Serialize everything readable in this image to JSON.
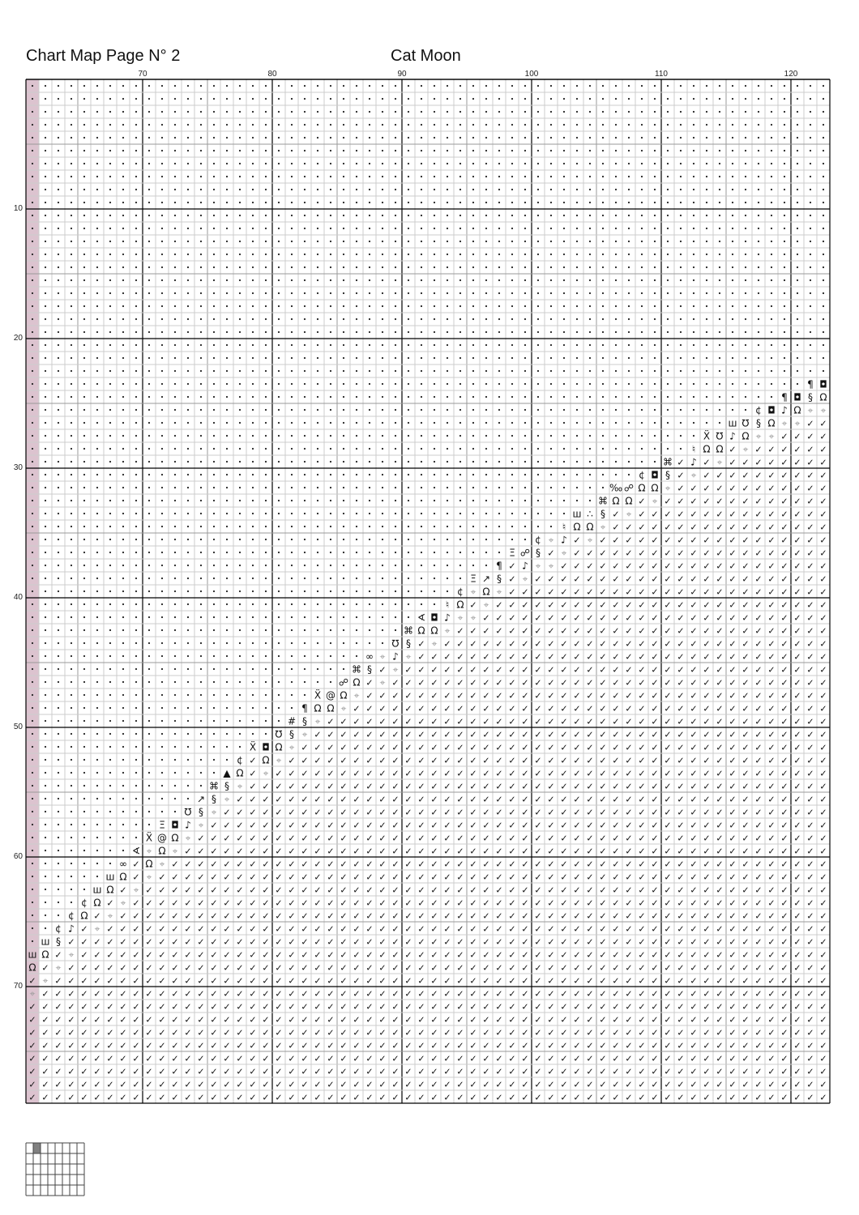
{
  "header": {
    "title": "Chart Map Page N° 2",
    "pattern_name": "Cat Moon"
  },
  "chart_data": {
    "type": "table",
    "first_column": 62,
    "last_column": 123,
    "first_row": 1,
    "last_row": 79,
    "column_labels": [
      "70",
      "80",
      "90",
      "100",
      "110",
      "120"
    ],
    "row_labels": [
      "10",
      "20",
      "30",
      "40",
      "50",
      "60",
      "70"
    ],
    "overlap_column": 62,
    "empty_symbol": "·",
    "fill_symbol": "✓",
    "fill_rows_from": 72,
    "boundary_rows": [
      {
        "row": 24,
        "col": 122,
        "symbols": "¶◘"
      },
      {
        "row": 25,
        "col": 120,
        "symbols": "¶◘§Ω"
      },
      {
        "row": 26,
        "col": 118,
        "symbols": "¢◘♪Ω⌖⌖"
      },
      {
        "row": 27,
        "col": 116,
        "symbols": "ш℧§Ω⌖⌖"
      },
      {
        "row": 28,
        "col": 114,
        "symbols": "Ẍ℧♪Ω⌖⌖"
      },
      {
        "row": 29,
        "col": 113,
        "symbols": "♮ΩΩ✓⌖"
      },
      {
        "row": 30,
        "col": 111,
        "symbols": "⌘✓♪✓⌖"
      },
      {
        "row": 31,
        "col": 109,
        "symbols": "¢◘§✓⌖"
      },
      {
        "row": 32,
        "col": 107,
        "symbols": "‰☍ΩΩ⌖"
      },
      {
        "row": 33,
        "col": 106,
        "symbols": "⌘ΩΩ✓⌖"
      },
      {
        "row": 34,
        "col": 104,
        "symbols": "ш∴§✓⌖"
      },
      {
        "row": 35,
        "col": 103,
        "symbols": "♮ΩΩ⌖"
      },
      {
        "row": 36,
        "col": 101,
        "symbols": "¢⌖♪✓⌖"
      },
      {
        "row": 37,
        "col": 99,
        "symbols": "Ξ☍§✓⌖"
      },
      {
        "row": 38,
        "col": 98,
        "symbols": "¶✓♪⌖⌖"
      },
      {
        "row": 39,
        "col": 96,
        "symbols": "Ξ↗§✓⌖"
      },
      {
        "row": 40,
        "col": 95,
        "symbols": "¢⌖Ω⌖"
      },
      {
        "row": 41,
        "col": 94,
        "symbols": "♮Ω✓⌖"
      },
      {
        "row": 42,
        "col": 92,
        "symbols": "∢◘♪⌖⌖"
      },
      {
        "row": 43,
        "col": 91,
        "symbols": "⌘ΩΩ⌖"
      },
      {
        "row": 44,
        "col": 90,
        "symbols": "℧§✓⌖"
      },
      {
        "row": 45,
        "col": 88,
        "symbols": "∞⌖♪⌖"
      },
      {
        "row": 46,
        "col": 87,
        "symbols": "⌘§✓⌖"
      },
      {
        "row": 47,
        "col": 86,
        "symbols": "☍Ω✓⌖"
      },
      {
        "row": 48,
        "col": 84,
        "symbols": "Ẍ@Ω⌖"
      },
      {
        "row": 49,
        "col": 83,
        "symbols": "¶ΩΩ⌖"
      },
      {
        "row": 50,
        "col": 82,
        "symbols": "#§⌖"
      },
      {
        "row": 51,
        "col": 81,
        "symbols": "℧§⌖"
      },
      {
        "row": 52,
        "col": 79,
        "symbols": "Ẍ◘Ω⌖"
      },
      {
        "row": 53,
        "col": 78,
        "symbols": "¢✓Ω⌖"
      },
      {
        "row": 54,
        "col": 77,
        "symbols": "▲Ω✓⌖"
      },
      {
        "row": 55,
        "col": 76,
        "symbols": "⌘§⌖"
      },
      {
        "row": 56,
        "col": 75,
        "symbols": "↗§⌖"
      },
      {
        "row": 57,
        "col": 74,
        "symbols": "℧§⌖"
      },
      {
        "row": 58,
        "col": 72,
        "symbols": "Ξ◘♪⌖"
      },
      {
        "row": 59,
        "col": 71,
        "symbols": "Ẍ@Ω⌖"
      },
      {
        "row": 60,
        "col": 70,
        "symbols": "∢⌖Ω⌖"
      },
      {
        "row": 61,
        "col": 69,
        "symbols": "∞✓Ω⌖"
      },
      {
        "row": 62,
        "col": 68,
        "symbols": "шΩ✓⌖"
      },
      {
        "row": 63,
        "col": 67,
        "symbols": "шΩ✓⌖"
      },
      {
        "row": 64,
        "col": 66,
        "symbols": "¢Ω✓⌖"
      },
      {
        "row": 65,
        "col": 65,
        "symbols": "¢Ω✓⌖"
      },
      {
        "row": 66,
        "col": 64,
        "symbols": "¢♪✓⌖"
      },
      {
        "row": 67,
        "col": 63,
        "symbols": "ш§"
      },
      {
        "row": 68,
        "col": 62,
        "symbols": "шΩ✓⌖"
      },
      {
        "row": 69,
        "col": 62,
        "symbols": "Ω✓⌖"
      },
      {
        "row": 70,
        "col": 62,
        "symbols": "✓⌖"
      },
      {
        "row": 71,
        "col": 62,
        "symbols": "⌖"
      }
    ],
    "faint_symbols": "⌖",
    "grid": true
  },
  "page_map": {
    "columns": 8,
    "rows": 5,
    "current_page": {
      "col": 2,
      "row": 1
    }
  },
  "colors": {
    "overlap": "#dcc3cf",
    "minor_grid": "#cccccc",
    "mid_grid": "#9a9a9a",
    "major_grid": "#000000",
    "faint_symbol": "#9a9a9a",
    "page_map_current": "#808080"
  }
}
